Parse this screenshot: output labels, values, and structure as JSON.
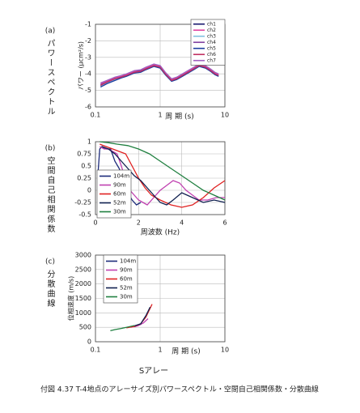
{
  "figure_label": "Sアレー",
  "caption": "付図 4.37  T-4地点のアレーサイズ別パワースペクトル・空間自己相関係数・分散曲線",
  "chart_data": [
    {
      "type": "line",
      "panel": "(a)",
      "side_label": "パワースペクトル",
      "ylabel": "パワー (μcm²/s)",
      "xlabel": "周 期 (s)",
      "xscale": "log",
      "xlim": [
        0.1,
        10
      ],
      "xticks": [
        0.1,
        1,
        10
      ],
      "ylim": [
        -6,
        -1
      ],
      "yticks": [
        -1,
        -2,
        -3,
        -4,
        -5,
        -6
      ],
      "grid": true,
      "legend": "upper-right",
      "x": [
        0.12,
        0.15,
        0.2,
        0.25,
        0.3,
        0.4,
        0.5,
        0.6,
        0.8,
        1,
        1.2,
        1.5,
        1.8,
        2.2,
        2.7,
        3.3,
        4,
        5,
        6,
        7,
        8
      ],
      "series": [
        {
          "name": "ch1",
          "color": "#1a1a6e",
          "values": [
            -4.7,
            -4.5,
            -4.3,
            -4.2,
            -4.1,
            -3.9,
            -3.85,
            -3.7,
            -3.5,
            -3.6,
            -4.0,
            -4.4,
            -4.3,
            -4.1,
            -3.9,
            -3.7,
            -3.5,
            -3.6,
            -3.8,
            -4.0,
            -4.1
          ]
        },
        {
          "name": "ch2",
          "color": "#e040a0",
          "values": [
            -4.6,
            -4.45,
            -4.25,
            -4.15,
            -4.05,
            -3.85,
            -3.8,
            -3.65,
            -3.45,
            -3.55,
            -3.95,
            -4.35,
            -4.25,
            -4.05,
            -3.85,
            -3.65,
            -3.45,
            -3.55,
            -3.75,
            -3.95,
            -4.05
          ]
        },
        {
          "name": "ch3",
          "color": "#80c0e0",
          "values": [
            -4.75,
            -4.55,
            -4.35,
            -4.25,
            -4.15,
            -3.95,
            -3.9,
            -3.75,
            -3.55,
            -3.65,
            -4.05,
            -4.45,
            -4.35,
            -4.15,
            -3.95,
            -3.75,
            -3.55,
            -3.65,
            -3.85,
            -4.05,
            -4.15
          ]
        },
        {
          "name": "ch4",
          "color": "#8040a0",
          "values": [
            -4.65,
            -4.5,
            -4.3,
            -4.2,
            -4.1,
            -3.9,
            -3.8,
            -3.7,
            -3.5,
            -3.6,
            -4.0,
            -4.4,
            -4.3,
            -4.1,
            -3.9,
            -3.7,
            -3.5,
            -3.6,
            -3.8,
            -4.0,
            -4.1
          ]
        },
        {
          "name": "ch5",
          "color": "#2040a0",
          "values": [
            -4.8,
            -4.6,
            -4.4,
            -4.25,
            -4.15,
            -3.95,
            -3.9,
            -3.75,
            -3.55,
            -3.65,
            -4.05,
            -4.45,
            -4.35,
            -4.15,
            -3.95,
            -3.75,
            -3.55,
            -3.65,
            -3.85,
            -4.05,
            -4.15
          ]
        },
        {
          "name": "ch6",
          "color": "#c03060",
          "values": [
            -4.7,
            -4.5,
            -4.3,
            -4.2,
            -4.1,
            -3.9,
            -3.85,
            -3.7,
            -3.5,
            -3.6,
            -4.0,
            -4.4,
            -4.3,
            -4.1,
            -3.9,
            -3.7,
            -3.5,
            -3.6,
            -3.8,
            -4.0,
            -4.1
          ]
        },
        {
          "name": "ch7",
          "color": "#a060c0",
          "values": [
            -4.55,
            -4.4,
            -4.2,
            -4.1,
            -4.0,
            -3.8,
            -3.75,
            -3.6,
            -3.4,
            -3.5,
            -3.9,
            -4.3,
            -4.2,
            -4.0,
            -3.8,
            -3.6,
            -3.4,
            -3.5,
            -3.7,
            -3.9,
            -4.0
          ]
        }
      ]
    },
    {
      "type": "line",
      "panel": "(b)",
      "side_label": "空間自己相関係数",
      "xlabel": "周波数 (Hz)",
      "xlim": [
        0,
        6
      ],
      "xticks": [
        0,
        2,
        4,
        6
      ],
      "ylim": [
        -0.5,
        1
      ],
      "yticks": [
        1,
        0.75,
        0.5,
        0.25,
        0,
        -0.25,
        -0.5
      ],
      "grid": true,
      "legend": "lower-left",
      "series": [
        {
          "name": "104m",
          "color": "#1c2a7a",
          "x": [
            0.1,
            0.2,
            0.3,
            0.5,
            0.7,
            0.9,
            1.1,
            1.3,
            1.5,
            1.7,
            1.9,
            2.1
          ],
          "values": [
            0.25,
            0.85,
            0.9,
            0.85,
            0.85,
            0.6,
            0.45,
            0.2,
            -0.05,
            -0.2,
            -0.3,
            -0.25
          ]
        },
        {
          "name": "90m",
          "color": "#c040b0",
          "x": [
            0.2,
            0.4,
            0.6,
            0.8,
            1,
            1.2,
            1.4,
            1.6,
            1.8,
            2,
            2.2,
            2.4,
            2.7,
            3,
            3.3,
            3.6,
            3.9,
            4.2,
            4.5,
            4.8,
            5.2,
            5.6,
            6
          ],
          "values": [
            0.9,
            0.85,
            0.85,
            0.8,
            0.75,
            0.5,
            0.2,
            0,
            -0.1,
            -0.2,
            -0.25,
            -0.3,
            -0.15,
            0,
            0.1,
            0.2,
            0.15,
            0,
            -0.1,
            -0.2,
            -0.2,
            -0.15,
            -0.15
          ]
        },
        {
          "name": "60m",
          "color": "#e02020",
          "x": [
            0.2,
            0.5,
            0.8,
            1.1,
            1.4,
            1.7,
            2,
            2.3,
            2.6,
            3,
            3.5,
            4,
            4.5,
            5,
            5.5,
            6
          ],
          "values": [
            0.95,
            0.9,
            0.85,
            0.8,
            0.75,
            0.5,
            0.25,
            0.05,
            -0.1,
            -0.2,
            -0.3,
            -0.35,
            -0.3,
            -0.15,
            0.05,
            0.2
          ]
        },
        {
          "name": "52m",
          "color": "#102050",
          "x": [
            0.3,
            0.6,
            0.9,
            1.2,
            1.5,
            1.8,
            2.1,
            2.4,
            2.7,
            3,
            3.3,
            3.6,
            4,
            4.5,
            5,
            5.5,
            6
          ],
          "values": [
            0.9,
            0.85,
            0.75,
            0.6,
            0.45,
            0.3,
            0.2,
            0.05,
            -0.1,
            -0.25,
            -0.3,
            -0.2,
            -0.05,
            -0.15,
            -0.25,
            -0.2,
            -0.25
          ]
        },
        {
          "name": "30m",
          "color": "#208040",
          "x": [
            0.2,
            0.6,
            1,
            1.5,
            2,
            2.5,
            3,
            3.5,
            4,
            4.5,
            5,
            5.5,
            6
          ],
          "values": [
            1,
            0.98,
            0.95,
            0.92,
            0.85,
            0.75,
            0.6,
            0.45,
            0.3,
            0.15,
            0,
            -0.1,
            -0.2
          ]
        }
      ]
    },
    {
      "type": "line",
      "panel": "(c)",
      "side_label": "分散曲線",
      "ylabel": "位相速度 (m/s)",
      "xlabel": "周 期 (s)",
      "xscale": "log",
      "xlim": [
        0.1,
        10
      ],
      "xticks": [
        0.1,
        1,
        10
      ],
      "ylim": [
        0,
        3000
      ],
      "yticks": [
        0,
        500,
        1000,
        1500,
        2000,
        2500,
        3000
      ],
      "grid": true,
      "legend": "upper-left",
      "series": [
        {
          "name": "104m",
          "color": "#1c2a7a",
          "x": [
            0.4,
            0.45,
            0.5
          ],
          "values": [
            520,
            560,
            600
          ]
        },
        {
          "name": "90m",
          "color": "#c040b0",
          "x": [
            0.35,
            0.45,
            0.55,
            0.65
          ],
          "values": [
            500,
            550,
            650,
            800
          ]
        },
        {
          "name": "60m",
          "color": "#e02020",
          "x": [
            0.3,
            0.4,
            0.5,
            0.6,
            0.75
          ],
          "values": [
            480,
            530,
            620,
            850,
            1300
          ]
        },
        {
          "name": "52m",
          "color": "#102050",
          "x": [
            0.4,
            0.5,
            0.6,
            0.7
          ],
          "values": [
            550,
            620,
            900,
            1200
          ]
        },
        {
          "name": "30m",
          "color": "#208040",
          "x": [
            0.17,
            0.2,
            0.25,
            0.3,
            0.4
          ],
          "values": [
            380,
            420,
            460,
            500,
            560
          ]
        }
      ]
    }
  ]
}
